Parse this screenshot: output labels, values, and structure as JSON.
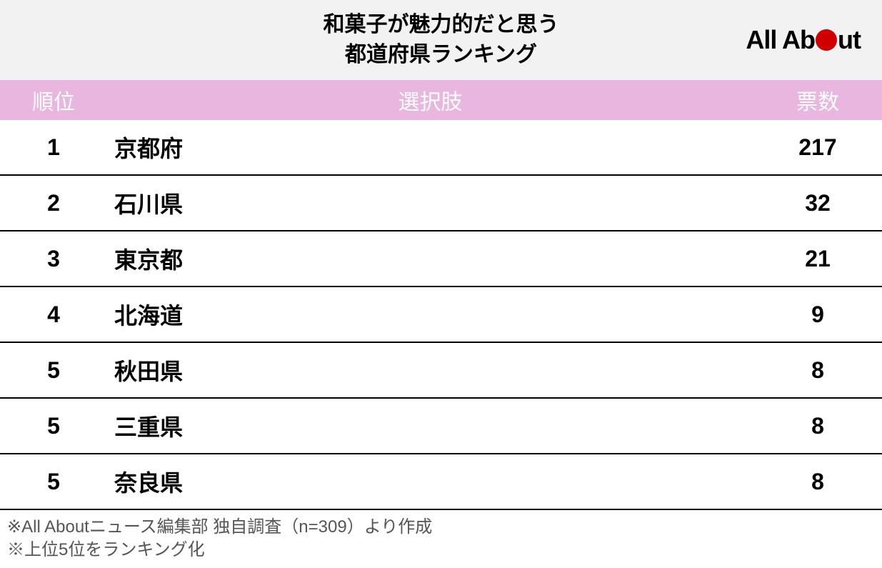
{
  "title_line1": "和菓子が魅力的だと思う",
  "title_line2": "都道府県ランキング",
  "logo": {
    "part1": "All Ab",
    "part2": "ut"
  },
  "columns": {
    "rank": "順位",
    "choice": "選択肢",
    "votes": "票数"
  },
  "rows": [
    {
      "rank": "1",
      "choice": "京都府",
      "votes": "217"
    },
    {
      "rank": "2",
      "choice": "石川県",
      "votes": "32"
    },
    {
      "rank": "3",
      "choice": "東京都",
      "votes": "21"
    },
    {
      "rank": "4",
      "choice": "北海道",
      "votes": "9"
    },
    {
      "rank": "5",
      "choice": "秋田県",
      "votes": "8"
    },
    {
      "rank": "5",
      "choice": "三重県",
      "votes": "8"
    },
    {
      "rank": "5",
      "choice": "奈良県",
      "votes": "8"
    }
  ],
  "footnote1": "※All Aboutニュース編集部 独自調査（n=309）より作成",
  "footnote2": "※上位5位をランキング化",
  "style": {
    "header_bg": "#f2f2f2",
    "table_header_bg": "#e8b6de",
    "table_header_fg": "#ffffff",
    "row_border": "#000000",
    "logo_dot_color": "#d00000",
    "footnote_color": "#555555",
    "title_fontsize": 30,
    "header_fontsize": 30,
    "row_fontsize": 32,
    "footnote_fontsize": 24
  }
}
